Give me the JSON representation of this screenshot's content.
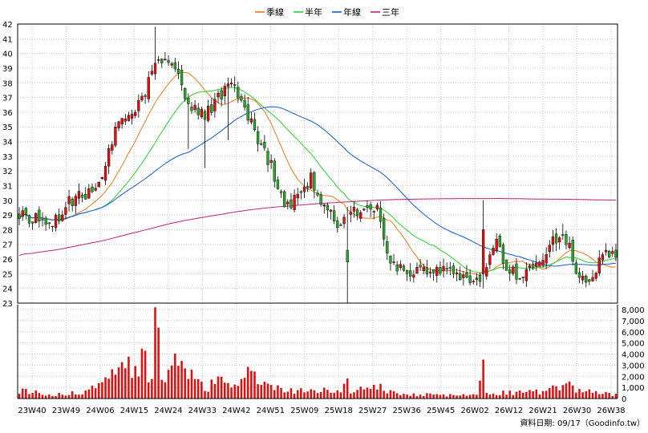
{
  "chart_data": {
    "type": "candlestick",
    "legend": [
      {
        "name": "季線",
        "color": "#f07818"
      },
      {
        "name": "半年",
        "color": "#28d028"
      },
      {
        "name": "年線",
        "color": "#1058d8"
      },
      {
        "name": "三年",
        "color": "#c0207a"
      }
    ],
    "up_color": "#e01010",
    "down_color": "#2aa52a",
    "price_ylim": [
      23,
      42
    ],
    "volume_ylim": [
      0,
      8000
    ],
    "volume_ticks": [
      "0",
      "1,000",
      "2,000",
      "3,000",
      "4,000",
      "5,000",
      "6,000",
      "7,000",
      "8,000"
    ],
    "x_labels": [
      "23W40",
      "23W49",
      "24W06",
      "24W15",
      "24W24",
      "24W33",
      "24W42",
      "24W51",
      "25W09",
      "25W18",
      "25W27",
      "25W36",
      "25W45",
      "26W02",
      "26W12",
      "26W21",
      "26W30",
      "26W38"
    ],
    "footer": "資料日期: 09/17（Goodinfo.tw）",
    "close_keypoints": [
      [
        0,
        29.2
      ],
      [
        6,
        28.6
      ],
      [
        12,
        28.7
      ],
      [
        15,
        29.9
      ],
      [
        20,
        30.4
      ],
      [
        24,
        31.2
      ],
      [
        28,
        34.2
      ],
      [
        32,
        35.8
      ],
      [
        36,
        36.4
      ],
      [
        40,
        38.6
      ],
      [
        44,
        40.0
      ],
      [
        48,
        38.2
      ],
      [
        52,
        36.5
      ],
      [
        56,
        35.7
      ],
      [
        60,
        37.0
      ],
      [
        64,
        37.7
      ],
      [
        68,
        36.4
      ],
      [
        72,
        34.2
      ],
      [
        76,
        32.4
      ],
      [
        80,
        29.5
      ],
      [
        84,
        30.1
      ],
      [
        88,
        31.6
      ],
      [
        92,
        29.4
      ],
      [
        96,
        28.5
      ],
      [
        100,
        29.2
      ],
      [
        104,
        29.4
      ],
      [
        108,
        29.4
      ],
      [
        112,
        25.8
      ],
      [
        116,
        25.2
      ],
      [
        120,
        25.2
      ],
      [
        124,
        25.0
      ],
      [
        128,
        25.1
      ],
      [
        132,
        24.8
      ],
      [
        136,
        24.8
      ],
      [
        140,
        24.9
      ],
      [
        144,
        27.0
      ],
      [
        148,
        25.2
      ],
      [
        152,
        24.8
      ],
      [
        156,
        25.5
      ],
      [
        160,
        26.8
      ],
      [
        164,
        28.0
      ],
      [
        168,
        25.4
      ],
      [
        172,
        24.4
      ],
      [
        176,
        26.3
      ],
      [
        180,
        26.0
      ]
    ],
    "volume_keypoints": [
      [
        0,
        700
      ],
      [
        10,
        350
      ],
      [
        20,
        650
      ],
      [
        28,
        2200
      ],
      [
        30,
        3000
      ],
      [
        35,
        2400
      ],
      [
        37,
        4000
      ],
      [
        40,
        1800
      ],
      [
        41,
        8200
      ],
      [
        43,
        2000
      ],
      [
        46,
        2600
      ],
      [
        48,
        4000
      ],
      [
        52,
        1800
      ],
      [
        56,
        1000
      ],
      [
        60,
        1400
      ],
      [
        64,
        1200
      ],
      [
        68,
        2400
      ],
      [
        72,
        1600
      ],
      [
        76,
        900
      ],
      [
        80,
        800
      ],
      [
        84,
        700
      ],
      [
        90,
        800
      ],
      [
        95,
        700
      ],
      [
        98,
        1000
      ],
      [
        100,
        700
      ],
      [
        104,
        800
      ],
      [
        108,
        1100
      ],
      [
        112,
        600
      ],
      [
        120,
        350
      ],
      [
        130,
        300
      ],
      [
        138,
        300
      ],
      [
        140,
        3500
      ],
      [
        141,
        500
      ],
      [
        150,
        500
      ],
      [
        158,
        600
      ],
      [
        162,
        900
      ],
      [
        166,
        1100
      ],
      [
        170,
        700
      ],
      [
        175,
        500
      ],
      [
        180,
        300
      ]
    ],
    "events": [
      {
        "i": 41,
        "high": 41.8,
        "low": 38.2,
        "vol": 8200
      },
      {
        "i": 51,
        "low": 33.5
      },
      {
        "i": 56,
        "low": 32.2
      },
      {
        "i": 63,
        "low": 34.1
      },
      {
        "i": 96,
        "low": 27.8
      },
      {
        "i": 99,
        "low": 23.0,
        "open": 26.6,
        "close": 25.8,
        "vol": 1800
      },
      {
        "i": 140,
        "high": 30.0,
        "open": 25.0,
        "close": 28.0,
        "vol": 3500
      },
      {
        "i": 164,
        "high": 28.4
      }
    ],
    "ma_windows": {
      "季線": 13,
      "半年": 26,
      "年線": 52,
      "三年": 156
    }
  }
}
